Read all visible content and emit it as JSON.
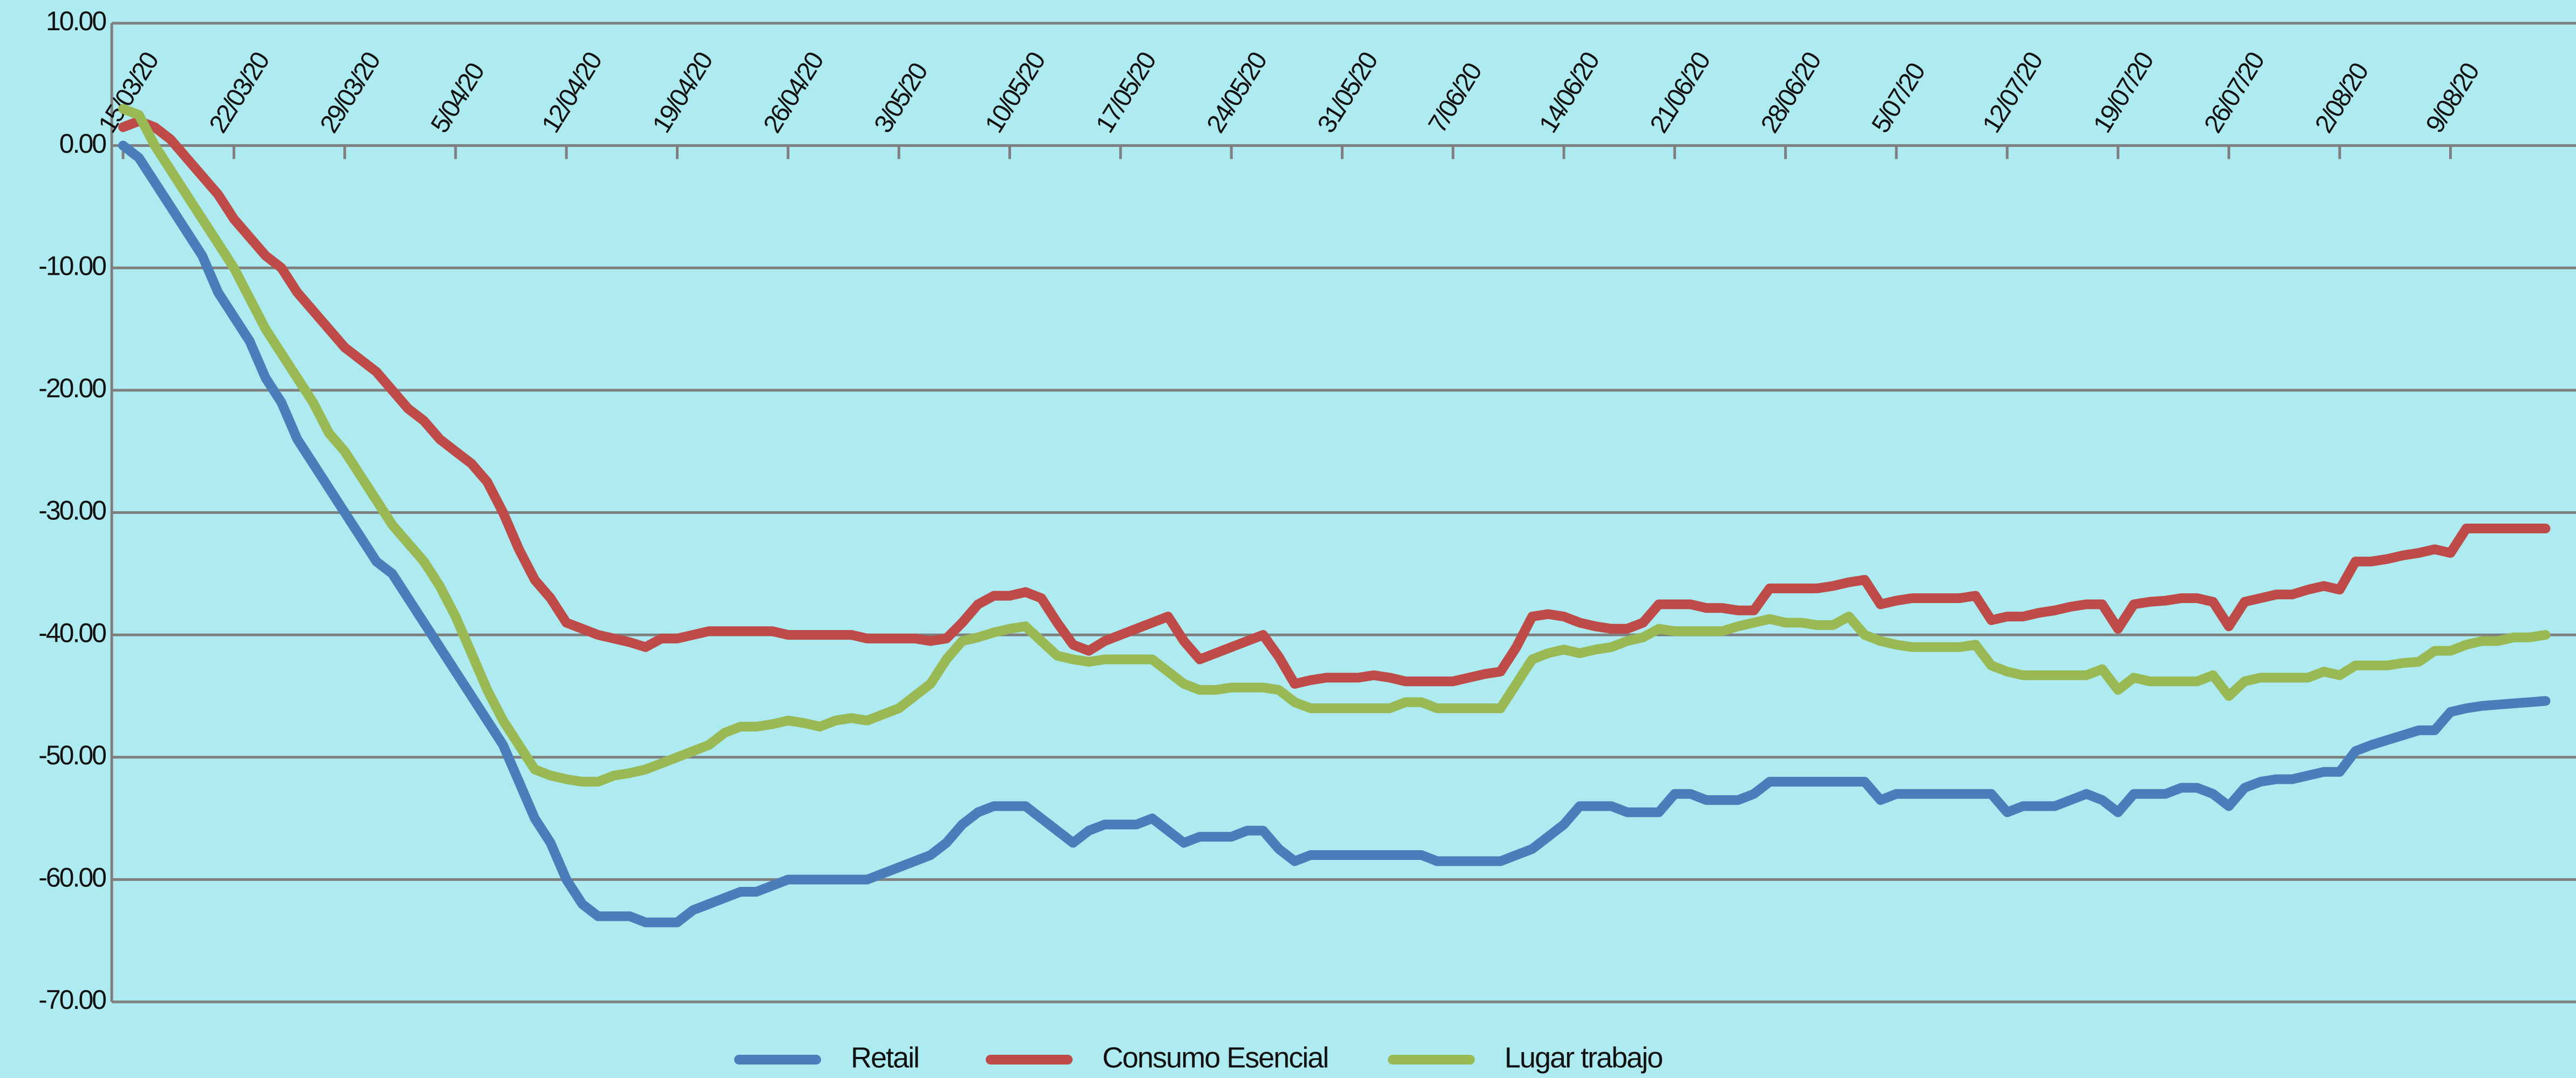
{
  "chart_data": {
    "type": "line",
    "categories": [
      "15/03/20",
      null,
      null,
      null,
      null,
      null,
      null,
      "22/03/20",
      null,
      null,
      null,
      null,
      null,
      null,
      "29/03/20",
      null,
      null,
      null,
      null,
      null,
      null,
      "5/04/20",
      null,
      null,
      null,
      null,
      null,
      null,
      "12/04/20",
      null,
      null,
      null,
      null,
      null,
      null,
      "19/04/20",
      null,
      null,
      null,
      null,
      null,
      null,
      "26/04/20",
      null,
      null,
      null,
      null,
      null,
      null,
      "3/05/20",
      null,
      null,
      null,
      null,
      null,
      null,
      "10/05/20",
      null,
      null,
      null,
      null,
      null,
      null,
      "17/05/20",
      null,
      null,
      null,
      null,
      null,
      null,
      "24/05/20",
      null,
      null,
      null,
      null,
      null,
      null,
      "31/05/20",
      null,
      null,
      null,
      null,
      null,
      null,
      "7/06/20",
      null,
      null,
      null,
      null,
      null,
      null,
      "14/06/20",
      null,
      null,
      null,
      null,
      null,
      null,
      "21/06/20",
      null,
      null,
      null,
      null,
      null,
      null,
      "28/06/20",
      null,
      null,
      null,
      null,
      null,
      null,
      "5/07/20",
      null,
      null,
      null,
      null,
      null,
      null,
      "12/07/20",
      null,
      null,
      null,
      null,
      null,
      null,
      "19/07/20",
      null,
      null,
      null,
      null,
      null,
      null,
      "26/07/20",
      null,
      null,
      null,
      null,
      null,
      null,
      "2/08/20",
      null,
      null,
      null,
      null,
      null,
      null,
      "9/08/20",
      null,
      null,
      null,
      null,
      null,
      null
    ],
    "series": [
      {
        "name": "Retail",
        "color": "#4a7ebb",
        "values": [
          0,
          -1,
          -3,
          -5,
          -7,
          -9,
          -12,
          -14,
          -16,
          -19,
          -21,
          -24,
          -26,
          -28,
          -30,
          -32,
          -34,
          -35,
          -37,
          -39,
          -41,
          -43,
          -45,
          -47,
          -49,
          -52,
          -55,
          -57,
          -60,
          -62,
          -63,
          -63,
          -63,
          -63.5,
          -63.5,
          -63.5,
          -62.5,
          -62,
          -61.5,
          -61,
          -61,
          -60.5,
          -60,
          -60,
          -60,
          -60,
          -60,
          -60,
          -59.5,
          -59,
          -58.5,
          -58,
          -57,
          -55.5,
          -54.5,
          -54,
          -54,
          -54,
          -55,
          -56,
          -57,
          -56,
          -55.5,
          -55.5,
          -55.5,
          -55,
          -56,
          -57,
          -56.5,
          -56.5,
          -56.5,
          -56,
          -56,
          -57.5,
          -58.5,
          -58,
          -58,
          -58,
          -58,
          -58,
          -58,
          -58,
          -58,
          -58.5,
          -58.5,
          -58.5,
          -58.5,
          -58.5,
          -58,
          -57.5,
          -56.5,
          -55.5,
          -54,
          -54,
          -54,
          -54.5,
          -54.5,
          -54.5,
          -53,
          -53,
          -53.5,
          -53.5,
          -53.5,
          -53,
          -52,
          -52,
          -52,
          -52,
          -52,
          -52,
          -52,
          -53.5,
          -53,
          -53,
          -53,
          -53,
          -53,
          -53,
          -53,
          -54.5,
          -54,
          -54,
          -54,
          -53.5,
          -53,
          -53.5,
          -54.5,
          -53,
          -53,
          -53,
          -52.5,
          -52.5,
          -53,
          -54,
          -52.5,
          -52,
          -51.8,
          -51.8,
          -51.5,
          -51.2,
          -51.2,
          -49.5,
          -49,
          -48.6,
          -48.2,
          -47.8,
          -47.8,
          -46.3,
          -46,
          -45.8,
          -45.7,
          -45.6,
          -45.5,
          -45.4
        ]
      },
      {
        "name": "Consumo Esencial",
        "color": "#be4b48",
        "values": [
          1.5,
          2,
          1.5,
          0.5,
          -1,
          -2.5,
          -4,
          -6,
          -7.5,
          -9,
          -10,
          -12,
          -13.5,
          -15,
          -16.5,
          -17.5,
          -18.5,
          -20,
          -21.5,
          -22.5,
          -24,
          -25,
          -26,
          -27.5,
          -30,
          -33,
          -35.5,
          -37,
          -39,
          -39.5,
          -40,
          -40.3,
          -40.6,
          -41,
          -40.3,
          -40.3,
          -40,
          -39.7,
          -39.7,
          -39.7,
          -39.7,
          -39.7,
          -40,
          -40,
          -40,
          -40,
          -40,
          -40.3,
          -40.3,
          -40.3,
          -40.3,
          -40.5,
          -40.3,
          -39,
          -37.5,
          -36.8,
          -36.8,
          -36.5,
          -37,
          -39,
          -40.8,
          -41.3,
          -40.5,
          -40,
          -39.5,
          -39,
          -38.5,
          -40.5,
          -42,
          -41.5,
          -41,
          -40.5,
          -40,
          -41.8,
          -44,
          -43.7,
          -43.5,
          -43.5,
          -43.5,
          -43.3,
          -43.5,
          -43.8,
          -43.8,
          -43.8,
          -43.8,
          -43.5,
          -43.2,
          -43,
          -41,
          -38.5,
          -38.3,
          -38.5,
          -39,
          -39.3,
          -39.5,
          -39.5,
          -39,
          -37.5,
          -37.5,
          -37.5,
          -37.8,
          -37.8,
          -38,
          -38,
          -36.2,
          -36.2,
          -36.2,
          -36.2,
          -36,
          -35.7,
          -35.5,
          -37.5,
          -37.2,
          -37,
          -37,
          -37,
          -37,
          -36.8,
          -38.8,
          -38.5,
          -38.5,
          -38.2,
          -38,
          -37.7,
          -37.5,
          -37.5,
          -39.5,
          -37.5,
          -37.3,
          -37.2,
          -37,
          -37,
          -37.3,
          -39.3,
          -37.3,
          -37,
          -36.7,
          -36.7,
          -36.3,
          -36,
          -36.3,
          -34,
          -34,
          -33.8,
          -33.5,
          -33.3,
          -33,
          -33.3,
          -31.3,
          -31.3,
          -31.3,
          -31.3,
          -31.3,
          -31.3
        ]
      },
      {
        "name": "Lugar trabajo",
        "color": "#98b954",
        "values": [
          3,
          2.5,
          0,
          -2,
          -4,
          -6,
          -8,
          -10,
          -12.5,
          -15,
          -17,
          -19,
          -21,
          -23.5,
          -25,
          -27,
          -29,
          -31,
          -32.5,
          -34,
          -36,
          -38.5,
          -41.5,
          -44.5,
          -47,
          -49,
          -51,
          -51.5,
          -51.8,
          -52,
          -52,
          -51.5,
          -51.3,
          -51,
          -50.5,
          -50,
          -49.5,
          -49,
          -48,
          -47.5,
          -47.5,
          -47.3,
          -47,
          -47.2,
          -47.5,
          -47,
          -46.8,
          -47,
          -46.5,
          -46,
          -45,
          -44,
          -42,
          -40.5,
          -40.2,
          -39.8,
          -39.5,
          -39.3,
          -40.5,
          -41.7,
          -42,
          -42.2,
          -42,
          -42,
          -42,
          -42,
          -43,
          -44,
          -44.5,
          -44.5,
          -44.3,
          -44.3,
          -44.3,
          -44.5,
          -45.5,
          -46,
          -46,
          -46,
          -46,
          -46,
          -46,
          -45.5,
          -45.5,
          -46,
          -46,
          -46,
          -46,
          -46,
          -44,
          -42,
          -41.5,
          -41.2,
          -41.5,
          -41.2,
          -41,
          -40.5,
          -40.2,
          -39.5,
          -39.7,
          -39.7,
          -39.7,
          -39.7,
          -39.3,
          -39,
          -38.7,
          -39,
          -39,
          -39.2,
          -39.2,
          -38.5,
          -40,
          -40.5,
          -40.8,
          -41,
          -41,
          -41,
          -41,
          -40.8,
          -42.5,
          -43,
          -43.3,
          -43.3,
          -43.3,
          -43.3,
          -43.3,
          -42.8,
          -44.5,
          -43.5,
          -43.8,
          -43.8,
          -43.8,
          -43.8,
          -43.3,
          -45,
          -43.8,
          -43.5,
          -43.5,
          -43.5,
          -43.5,
          -43,
          -43.3,
          -42.5,
          -42.5,
          -42.5,
          -42.3,
          -42.2,
          -41.3,
          -41.3,
          -40.8,
          -40.5,
          -40.5,
          -40.2,
          -40.2,
          -40
        ]
      }
    ],
    "ylim": [
      -70,
      10
    ],
    "yticks": [
      {
        "value": 10,
        "label": "10.00"
      },
      {
        "value": 0,
        "label": "0.00"
      },
      {
        "value": -10,
        "label": "-10.00"
      },
      {
        "value": -20,
        "label": "-20.00"
      },
      {
        "value": -30,
        "label": "-30.00"
      },
      {
        "value": -40,
        "label": "-40.00"
      },
      {
        "value": -50,
        "label": "-50.00"
      },
      {
        "value": -60,
        "label": "-60.00"
      },
      {
        "value": -70,
        "label": "-70.00"
      }
    ],
    "grid": true
  }
}
